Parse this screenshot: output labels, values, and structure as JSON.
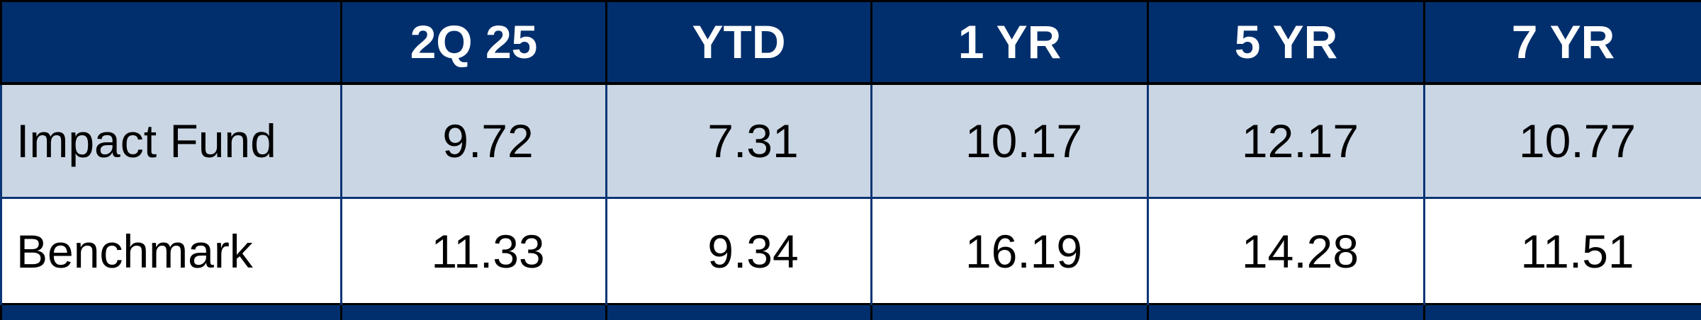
{
  "chart_data": {
    "type": "table",
    "columns": [
      "",
      "2Q 25",
      "YTD",
      "1 YR",
      "5 YR",
      "7 YR"
    ],
    "rows": [
      {
        "label": "Impact Fund",
        "values": [
          "9.72",
          "7.31",
          "10.17",
          "12.17",
          "10.77"
        ]
      },
      {
        "label": "Benchmark",
        "values": [
          "11.33",
          "9.34",
          "16.19",
          "14.28",
          "11.51"
        ]
      }
    ],
    "colors": {
      "header_bg": "#012F6D",
      "header_text": "#FFFFFF",
      "row_alt_bg": "#CAD6E4",
      "row_bg": "#FFFFFF",
      "border": "#0B3575"
    }
  }
}
